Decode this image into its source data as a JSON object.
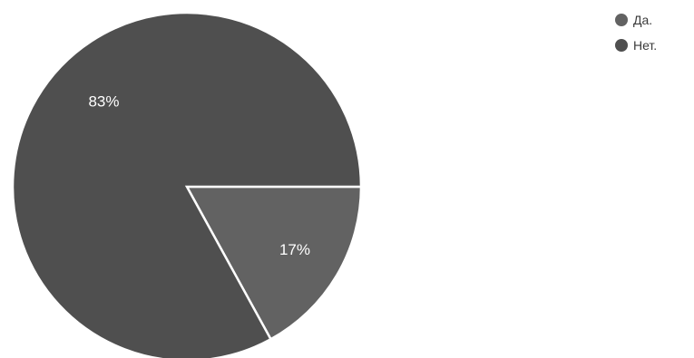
{
  "chart_data": {
    "type": "pie",
    "categories": [
      "Да.",
      "Нет."
    ],
    "values": [
      17,
      83
    ],
    "labels": [
      "17%",
      "83%"
    ],
    "colors": [
      "#626262",
      "#4f4f4f"
    ],
    "legend_position": "top-right"
  }
}
